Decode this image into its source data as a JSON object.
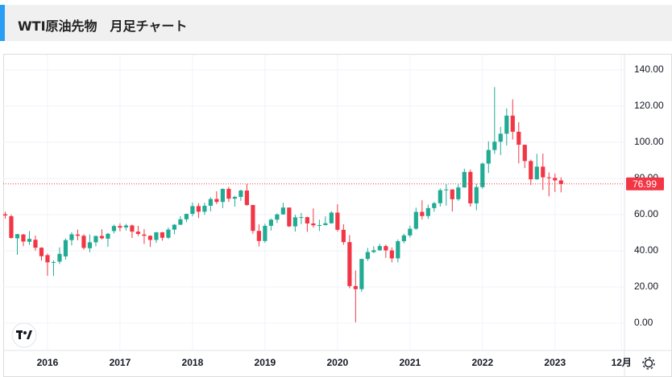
{
  "header": {
    "title": "WTI原油先物　月足チャート"
  },
  "chart_data": {
    "type": "candlestick",
    "x": [
      0,
      1,
      2,
      3,
      4,
      5,
      6,
      7,
      8,
      9,
      10,
      11,
      12,
      13,
      14,
      15,
      16,
      17,
      18,
      19,
      20,
      21,
      22,
      23,
      24,
      25,
      26,
      27,
      28,
      29,
      30,
      31,
      32,
      33,
      34,
      35,
      36,
      37,
      38,
      39,
      40,
      41,
      42,
      43,
      44,
      45,
      46,
      47,
      48,
      49,
      50,
      51,
      52,
      53,
      54,
      55,
      56,
      57,
      58,
      59,
      60,
      61,
      62,
      63,
      64,
      65,
      66,
      67,
      68,
      69,
      70,
      71,
      72,
      73,
      74,
      75,
      76,
      77,
      78,
      79,
      80,
      81,
      82,
      83,
      84,
      85,
      86,
      87,
      88,
      89,
      90,
      91,
      92
    ],
    "open": [
      60.2,
      59.1,
      46.9,
      49.0,
      45.0,
      46.1,
      41.7,
      37.6,
      33.7,
      34.0,
      36.9,
      45.9,
      49.0,
      48.3,
      41.4,
      44.7,
      48.2,
      46.7,
      50.9,
      53.7,
      52.9,
      54.0,
      50.6,
      49.0,
      48.3,
      46.0,
      50.2,
      47.2,
      51.7,
      54.4,
      57.4,
      60.4,
      64.7,
      61.6,
      64.9,
      68.6,
      67.0,
      74.2,
      68.8,
      69.8,
      73.3,
      65.3,
      51.0,
      45.4,
      53.8,
      57.2,
      60.1,
      63.9,
      53.5,
      58.5,
      58.6,
      55.1,
      54.1,
      54.2,
      55.2,
      61.1,
      51.6,
      44.8,
      20.5,
      18.8,
      35.5,
      39.3,
      40.3,
      42.6,
      40.2,
      35.8,
      45.3,
      48.5,
      52.2,
      61.5,
      59.2,
      63.6,
      66.3,
      73.5,
      73.9,
      68.5,
      75.0,
      83.6,
      66.2,
      75.2,
      88.2,
      95.7,
      100.3,
      104.7,
      114.7,
      105.8,
      98.6,
      89.6,
      79.5,
      86.5,
      80.6,
      80.3,
      78.9
    ],
    "high": [
      61.6,
      60.0,
      49.3,
      49.3,
      50.9,
      48.4,
      42.0,
      38.4,
      34.7,
      41.9,
      46.8,
      50.2,
      51.7,
      49.1,
      49.0,
      48.3,
      51.9,
      49.9,
      54.5,
      55.2,
      54.9,
      54.5,
      53.8,
      52.0,
      48.5,
      50.4,
      50.4,
      52.9,
      54.8,
      59.1,
      60.5,
      66.7,
      66.3,
      66.6,
      69.6,
      72.9,
      74.5,
      75.3,
      70.3,
      73.8,
      76.9,
      65.4,
      54.6,
      55.0,
      57.8,
      60.7,
      66.6,
      63.9,
      59.9,
      60.9,
      58.8,
      63.4,
      57.2,
      59.0,
      61.9,
      65.7,
      54.7,
      48.7,
      29.1,
      35.6,
      41.6,
      42.5,
      43.8,
      43.4,
      41.9,
      46.3,
      49.4,
      53.9,
      63.8,
      67.9,
      65.5,
      67.0,
      74.5,
      76.9,
      73.9,
      76.7,
      85.4,
      84.9,
      77.0,
      88.8,
      100.5,
      130.5,
      108.5,
      118.7,
      123.7,
      111.1,
      98.6,
      90.4,
      93.6,
      93.7,
      83.3,
      82.7,
      80.6
    ],
    "low": [
      57.8,
      46.7,
      37.8,
      42.6,
      43.2,
      40.1,
      34.5,
      26.2,
      26.1,
      32.7,
      35.2,
      43.0,
      45.8,
      40.6,
      39.2,
      42.5,
      46.3,
      42.2,
      49.6,
      50.7,
      51.2,
      47.1,
      48.2,
      43.8,
      42.1,
      44.4,
      45.6,
      46.5,
      49.1,
      54.2,
      55.8,
      59.1,
      58.1,
      59.9,
      61.8,
      65.8,
      63.6,
      67.0,
      64.4,
      67.6,
      64.8,
      49.4,
      42.4,
      44.4,
      51.2,
      55.3,
      60.0,
      53.1,
      50.6,
      54.7,
      50.5,
      52.8,
      50.9,
      54.0,
      55.0,
      50.6,
      43.3,
      19.3,
      0.5,
      17.3,
      34.4,
      38.7,
      39.9,
      36.1,
      33.6,
      33.6,
      44.2,
      47.3,
      51.6,
      57.3,
      57.6,
      61.6,
      64.4,
      65.0,
      61.7,
      67.6,
      74.9,
      64.4,
      62.4,
      74.3,
      83.0,
      93.5,
      92.9,
      98.2,
      101.5,
      88.3,
      85.7,
      76.3,
      79.3,
      73.6,
      70.1,
      72.5,
      72.3
    ],
    "close": [
      59.5,
      47.1,
      49.2,
      45.1,
      46.6,
      41.7,
      37.0,
      33.6,
      33.8,
      38.3,
      45.9,
      49.1,
      48.3,
      41.6,
      44.7,
      48.2,
      46.9,
      49.4,
      53.7,
      52.8,
      54.0,
      50.6,
      49.3,
      48.3,
      46.0,
      50.2,
      47.2,
      51.7,
      54.4,
      57.4,
      60.4,
      64.7,
      61.6,
      64.9,
      68.6,
      67.0,
      74.2,
      68.8,
      69.8,
      73.3,
      65.3,
      51.0,
      45.4,
      53.8,
      57.2,
      60.1,
      63.9,
      53.5,
      58.5,
      58.6,
      55.1,
      54.1,
      54.2,
      55.2,
      61.1,
      51.6,
      44.8,
      20.5,
      18.8,
      35.5,
      39.3,
      40.3,
      42.6,
      40.2,
      35.8,
      45.3,
      48.5,
      52.2,
      61.5,
      59.2,
      63.6,
      66.3,
      73.5,
      73.9,
      68.5,
      75.0,
      83.6,
      66.2,
      75.2,
      88.2,
      95.7,
      100.3,
      104.7,
      114.7,
      105.8,
      98.6,
      89.6,
      79.5,
      86.5,
      80.6,
      80.3,
      78.9,
      76.99
    ],
    "up_color": "#22ab94",
    "down_color": "#f23645",
    "xlim": [
      -0.33,
      102.5
    ],
    "xticks": [
      {
        "value": 7,
        "label": "2016"
      },
      {
        "value": 19,
        "label": "2017"
      },
      {
        "value": 31,
        "label": "2018"
      },
      {
        "value": 43,
        "label": "2019"
      },
      {
        "value": 55,
        "label": "2020"
      },
      {
        "value": 67,
        "label": "2021"
      },
      {
        "value": 79,
        "label": "2022"
      },
      {
        "value": 91,
        "label": "2023"
      },
      {
        "value": 102,
        "label": "12月"
      }
    ],
    "ylim": [
      -15.1,
      148.4
    ],
    "yticks": [
      {
        "value": 0,
        "label": "0.00"
      },
      {
        "value": 20,
        "label": "20.00"
      },
      {
        "value": 40,
        "label": "40.00"
      },
      {
        "value": 60,
        "label": "60.00"
      },
      {
        "value": 80,
        "label": "80.00"
      },
      {
        "value": 100,
        "label": "100.00"
      },
      {
        "value": 120,
        "label": "120.00"
      },
      {
        "value": 140,
        "label": "140.00"
      }
    ],
    "grid": true
  }
}
